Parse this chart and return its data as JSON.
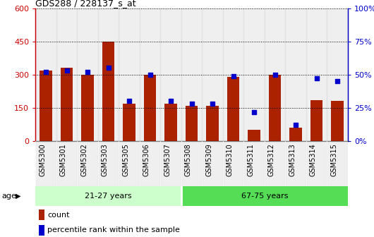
{
  "title": "GDS288 / 228137_s_at",
  "samples": [
    "GSM5300",
    "GSM5301",
    "GSM5302",
    "GSM5303",
    "GSM5305",
    "GSM5306",
    "GSM5307",
    "GSM5308",
    "GSM5309",
    "GSM5310",
    "GSM5311",
    "GSM5312",
    "GSM5313",
    "GSM5314",
    "GSM5315"
  ],
  "counts": [
    320,
    330,
    300,
    450,
    170,
    300,
    170,
    160,
    160,
    290,
    50,
    300,
    60,
    185,
    180
  ],
  "percentiles": [
    52,
    53,
    52,
    55,
    30,
    50,
    30,
    28,
    28,
    49,
    22,
    50,
    12,
    47,
    45
  ],
  "bar_color": "#aa2200",
  "dot_color": "#0000cc",
  "groups": [
    {
      "label": "21-27 years",
      "start": 0,
      "end": 7,
      "color": "#ccffcc"
    },
    {
      "label": "67-75 years",
      "start": 7,
      "end": 15,
      "color": "#55dd55"
    }
  ],
  "ylim_left": [
    0,
    600
  ],
  "ylim_right": [
    0,
    100
  ],
  "yticks_left": [
    0,
    150,
    300,
    450,
    600
  ],
  "yticks_right": [
    0,
    25,
    50,
    75,
    100
  ],
  "background_color": "#ffffff",
  "left_axis_color": "#cc0000",
  "right_axis_color": "#0000cc",
  "col_bg_color": "#dddddd",
  "age_label": "age",
  "legend_count": "count",
  "legend_pct": "percentile rank within the sample"
}
